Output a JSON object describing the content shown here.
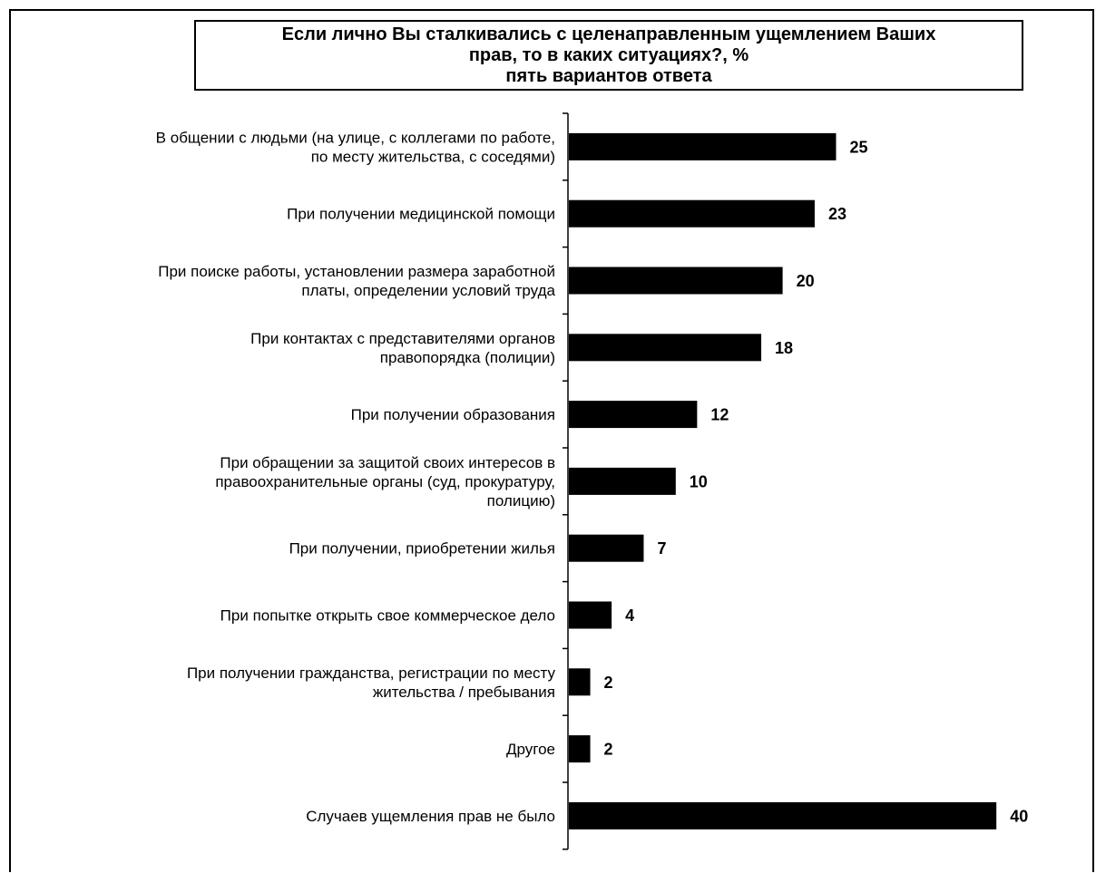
{
  "chart_data": {
    "type": "bar",
    "orientation": "horizontal",
    "title": {
      "line1": "Если лично Вы сталкивались с целенаправленным ущемлением Ваших",
      "line2": "прав, то в каких ситуациях?, %",
      "line3": "пять вариантов ответа"
    },
    "categories": [
      [
        "В общении с людьми (на улице, с коллегами по работе,",
        "по месту жительства, с соседями)"
      ],
      [
        "При получении медицинской помощи"
      ],
      [
        "При поиске работы, установлении размера заработной",
        "платы, определении условий труда"
      ],
      [
        "При контактах с представителями органов",
        "правопорядка (полиции)"
      ],
      [
        "При получении образования"
      ],
      [
        "При обращении за защитой своих интересов в",
        "правоохранительные органы (суд, прокуратуру,",
        "полицию)"
      ],
      [
        "При получении, приобретении жилья"
      ],
      [
        "При попытке открыть свое коммерческое дело"
      ],
      [
        "При получении гражданства, регистрации по месту",
        "жительства / пребывания"
      ],
      [
        "Другое"
      ],
      [
        "Случаев ущемления прав не было"
      ]
    ],
    "values": [
      25,
      23,
      20,
      18,
      12,
      10,
      7,
      4,
      2,
      2,
      40
    ],
    "xlim": [
      0,
      40
    ],
    "bar_color": "#000000",
    "grid": false,
    "legend": "none"
  }
}
